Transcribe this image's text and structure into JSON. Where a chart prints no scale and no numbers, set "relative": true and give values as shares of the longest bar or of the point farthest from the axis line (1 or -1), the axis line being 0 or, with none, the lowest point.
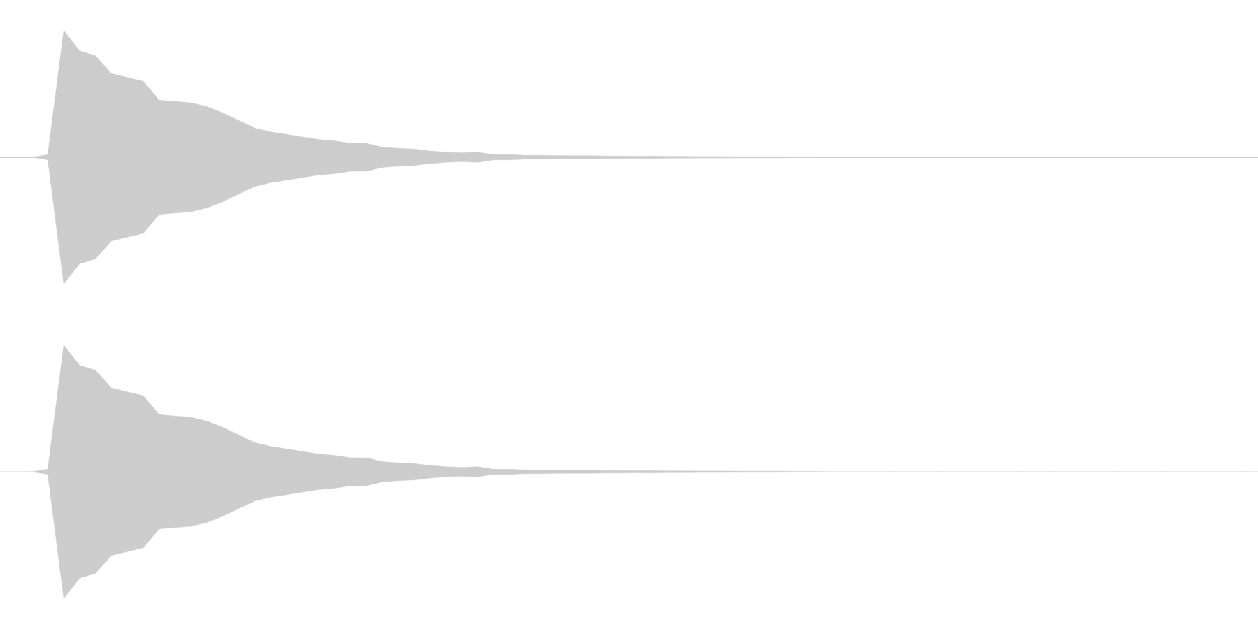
{
  "chart_data": [
    {
      "type": "area",
      "relative": true,
      "categories": [
        null,
        null,
        null,
        null,
        null,
        null,
        null,
        null,
        null,
        null,
        null,
        null,
        null,
        null,
        null,
        null,
        null,
        null,
        null,
        null,
        null,
        null,
        null,
        null,
        null,
        null,
        null,
        null,
        null,
        null,
        null,
        null,
        null,
        null,
        null,
        null,
        null,
        null,
        null,
        null,
        null,
        null,
        null,
        null,
        null,
        null,
        null,
        null,
        null,
        null,
        null,
        null,
        null,
        null,
        null,
        null,
        null,
        null,
        null,
        null,
        null,
        null,
        null,
        null,
        null,
        null,
        null,
        null,
        null,
        null,
        null,
        null,
        null,
        null,
        null,
        null,
        null,
        null,
        null,
        null
      ],
      "series": [
        {
          "color": "#cccccc",
          "values": [
            0,
            0,
            0,
            0.02,
            1,
            0.84,
            0.8,
            0.66,
            0.63,
            0.6,
            0.45,
            0.44,
            0.43,
            0.4,
            0.35,
            0.29,
            0.23,
            0.2,
            0.18,
            0.16,
            0.14,
            0.13,
            0.11,
            0.11,
            0.08,
            0.07,
            0.065,
            0.05,
            0.04,
            0.035,
            0.04,
            0.02,
            0.02,
            0.015,
            0.015,
            0.013,
            0.012,
            0.012,
            0.01,
            0.01,
            0.008,
            0.01,
            0.007,
            0.007,
            0.006,
            0.006,
            0.005,
            0.004,
            0.004,
            0.004,
            0.003,
            0.003,
            0,
            0,
            0,
            0,
            0,
            0,
            0,
            0,
            0,
            0,
            0,
            0,
            0,
            0,
            0,
            0,
            0,
            0,
            0,
            0,
            0,
            0,
            0,
            0,
            0,
            0,
            0,
            0
          ]
        },
        {
          "color": "#cdcdcd",
          "values": [
            0,
            0,
            0,
            -0.02,
            -1,
            -0.84,
            -0.8,
            -0.66,
            -0.63,
            -0.6,
            -0.45,
            -0.44,
            -0.43,
            -0.4,
            -0.35,
            -0.29,
            -0.23,
            -0.2,
            -0.18,
            -0.16,
            -0.14,
            -0.13,
            -0.11,
            -0.11,
            -0.08,
            -0.07,
            -0.065,
            -0.05,
            -0.04,
            -0.035,
            -0.04,
            -0.02,
            -0.02,
            -0.015,
            -0.015,
            -0.013,
            -0.012,
            -0.012,
            -0.01,
            -0.01,
            -0.008,
            -0.01,
            -0.007,
            -0.007,
            -0.006,
            -0.006,
            -0.005,
            -0.004,
            -0.004,
            -0.004,
            -0.003,
            -0.003,
            0,
            0,
            0,
            0,
            0,
            0,
            0,
            0,
            0,
            0,
            0,
            0,
            0,
            0,
            0,
            0,
            0,
            0,
            0,
            0,
            0,
            0,
            0,
            0,
            0,
            0,
            0,
            0
          ]
        }
      ]
    },
    {
      "type": "area",
      "relative": true,
      "categories": [
        null,
        null,
        null,
        null,
        null,
        null,
        null,
        null,
        null,
        null,
        null,
        null,
        null,
        null,
        null,
        null,
        null,
        null,
        null,
        null,
        null,
        null,
        null,
        null,
        null,
        null,
        null,
        null,
        null,
        null,
        null,
        null,
        null,
        null,
        null,
        null,
        null,
        null,
        null,
        null,
        null,
        null,
        null,
        null,
        null,
        null,
        null,
        null,
        null,
        null,
        null,
        null,
        null,
        null,
        null,
        null,
        null,
        null,
        null,
        null,
        null,
        null,
        null,
        null,
        null,
        null,
        null,
        null,
        null,
        null,
        null,
        null,
        null,
        null,
        null,
        null,
        null,
        null,
        null,
        null
      ],
      "series": [
        {
          "color": "#cccccc",
          "values": [
            0,
            0,
            0,
            0.02,
            1,
            0.84,
            0.8,
            0.66,
            0.63,
            0.6,
            0.45,
            0.44,
            0.43,
            0.4,
            0.35,
            0.29,
            0.23,
            0.2,
            0.18,
            0.16,
            0.14,
            0.13,
            0.11,
            0.11,
            0.08,
            0.07,
            0.065,
            0.05,
            0.04,
            0.035,
            0.04,
            0.02,
            0.02,
            0.015,
            0.015,
            0.013,
            0.012,
            0.012,
            0.01,
            0.01,
            0.008,
            0.01,
            0.007,
            0.007,
            0.006,
            0.006,
            0.005,
            0.004,
            0.004,
            0.004,
            0.003,
            0.003,
            0,
            0,
            0,
            0,
            0,
            0,
            0,
            0,
            0,
            0,
            0,
            0,
            0,
            0,
            0,
            0,
            0,
            0,
            0,
            0,
            0,
            0,
            0,
            0,
            0,
            0,
            0,
            0
          ]
        },
        {
          "color": "#cdcdcd",
          "values": [
            0,
            0,
            0,
            -0.02,
            -1,
            -0.84,
            -0.8,
            -0.66,
            -0.63,
            -0.6,
            -0.45,
            -0.44,
            -0.43,
            -0.4,
            -0.35,
            -0.29,
            -0.23,
            -0.2,
            -0.18,
            -0.16,
            -0.14,
            -0.13,
            -0.11,
            -0.11,
            -0.08,
            -0.07,
            -0.065,
            -0.05,
            -0.04,
            -0.035,
            -0.04,
            -0.02,
            -0.02,
            -0.015,
            -0.015,
            -0.013,
            -0.012,
            -0.012,
            -0.01,
            -0.01,
            -0.008,
            -0.01,
            -0.007,
            -0.007,
            -0.006,
            -0.006,
            -0.005,
            -0.004,
            -0.004,
            -0.004,
            -0.003,
            -0.003,
            0,
            0,
            0,
            0,
            0,
            0,
            0,
            0,
            0,
            0,
            0,
            0,
            0,
            0,
            0,
            0,
            0,
            0,
            0,
            0,
            0,
            0,
            0,
            0,
            0,
            0,
            0,
            0
          ]
        }
      ]
    }
  ]
}
